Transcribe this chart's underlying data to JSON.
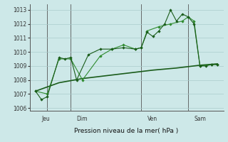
{
  "bg_color": "#cde8e8",
  "grid_color": "#aacccc",
  "line_dark": "#1a5c1a",
  "line_med": "#2e8b2e",
  "xlabel": "Pression niveau de la mer( hPa )",
  "ylim": [
    1005.8,
    1013.4
  ],
  "yticks": [
    1006,
    1007,
    1008,
    1009,
    1010,
    1011,
    1012,
    1013
  ],
  "xlim": [
    -0.5,
    16.0
  ],
  "xtick_labels": [
    "Jeu",
    "Dim",
    "Ven",
    "Sam"
  ],
  "xtick_pos": [
    0.5,
    3.5,
    9.5,
    13.5
  ],
  "vline_pos": [
    1.0,
    3.0,
    9.0,
    13.0
  ],
  "s1_x": [
    0.0,
    0.5,
    1.0,
    2.0,
    2.5,
    3.0,
    3.5,
    4.5,
    5.5,
    6.5,
    7.5,
    8.5,
    9.0,
    9.5,
    10.0,
    10.5,
    11.0,
    11.5,
    12.0,
    12.5,
    13.0,
    13.5,
    14.0,
    14.5,
    15.0,
    15.5
  ],
  "s1_y": [
    1007.2,
    1006.6,
    1006.8,
    1009.6,
    1009.5,
    1009.6,
    1008.0,
    1009.8,
    1010.2,
    1010.2,
    1010.3,
    1010.2,
    1010.3,
    1011.4,
    1011.1,
    1011.5,
    1012.0,
    1013.0,
    1012.2,
    1012.7,
    1012.5,
    1012.0,
    1009.0,
    1009.0,
    1009.1,
    1009.1
  ],
  "s2_x": [
    0.0,
    1.0,
    2.0,
    3.0,
    4.0,
    5.5,
    6.5,
    7.5,
    8.5,
    9.0,
    9.5,
    10.5,
    11.5,
    12.5,
    13.0,
    13.5,
    14.0,
    15.0,
    15.5
  ],
  "s2_y": [
    1007.2,
    1007.0,
    1009.5,
    1009.5,
    1008.0,
    1009.7,
    1010.2,
    1010.5,
    1010.2,
    1010.3,
    1011.5,
    1011.8,
    1012.0,
    1012.2,
    1012.5,
    1012.2,
    1009.0,
    1009.1,
    1009.1
  ],
  "s3_x": [
    0.0,
    2.0,
    4.0,
    6.0,
    8.0,
    10.0,
    12.0,
    14.0,
    15.5
  ],
  "s3_y": [
    1007.2,
    1007.8,
    1008.1,
    1008.3,
    1008.5,
    1008.7,
    1008.85,
    1009.05,
    1009.15
  ]
}
